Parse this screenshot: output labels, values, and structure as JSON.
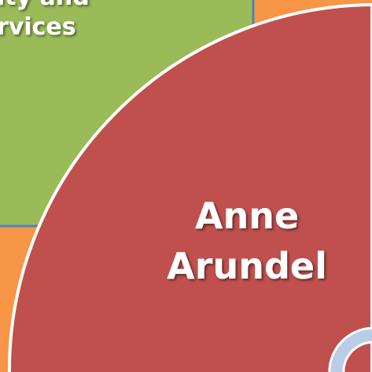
{
  "green_box": {
    "lines": [
      "ity and",
      "rvices"
    ]
  },
  "red_sector": {
    "lines": [
      "Anne",
      "Arundel"
    ]
  }
}
